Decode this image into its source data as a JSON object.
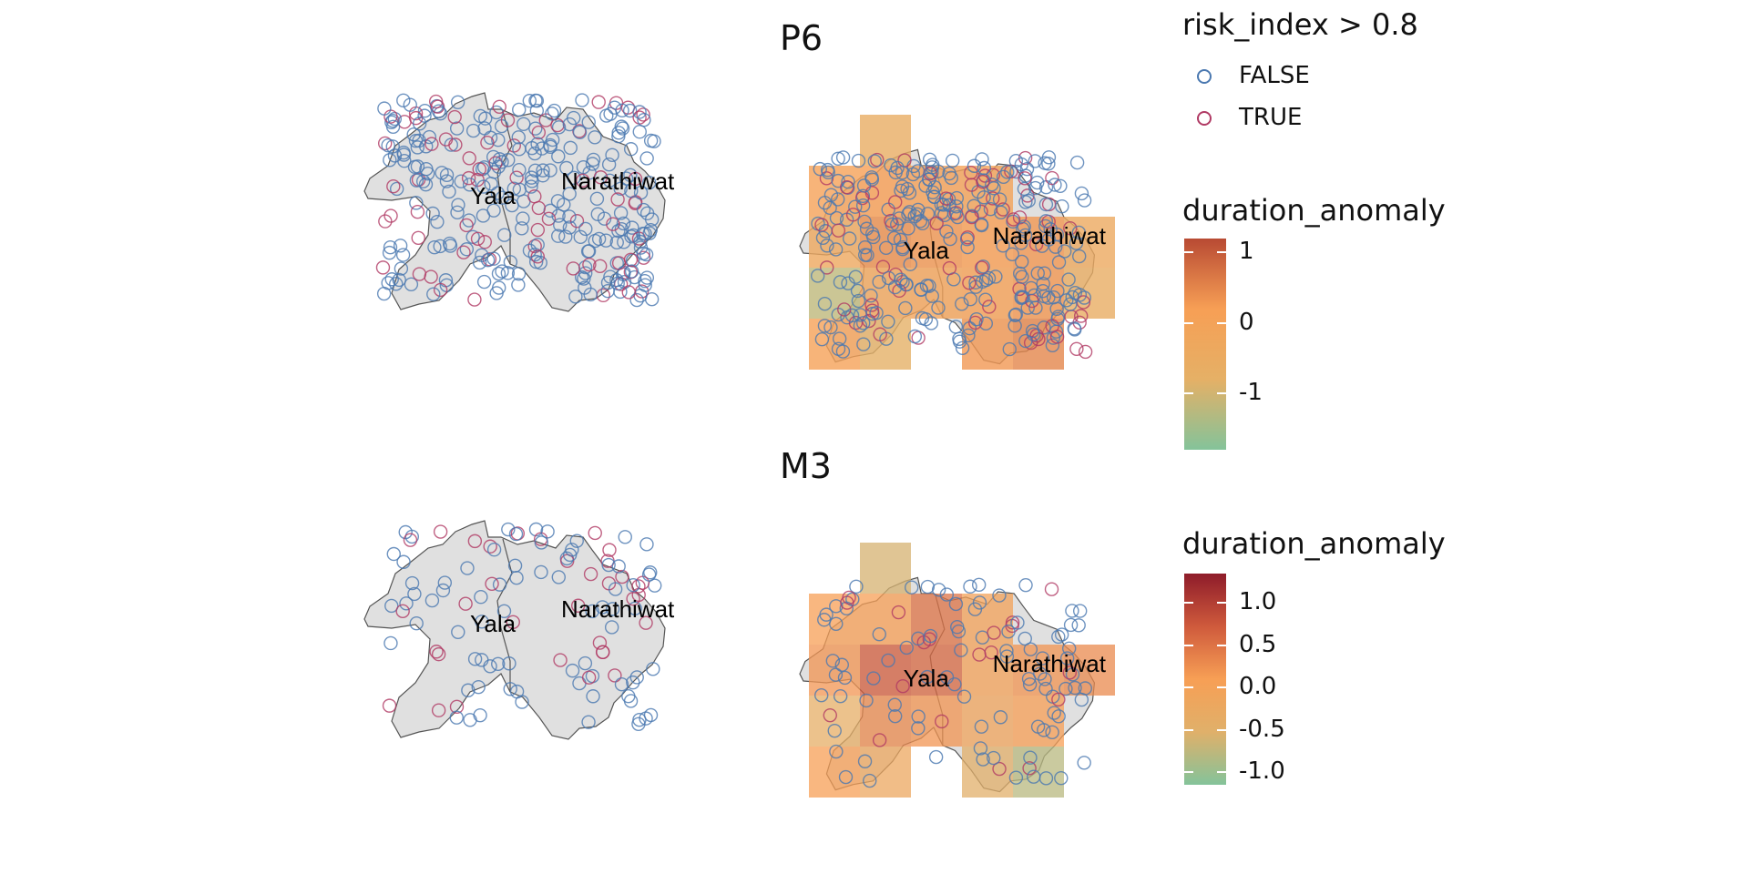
{
  "panels": [
    {
      "title": "P6",
      "region_labels": [
        "Yala",
        "Narathiwat"
      ]
    },
    {
      "title": "M3",
      "region_labels": [
        "Yala",
        "Narathiwat"
      ]
    }
  ],
  "point_legend": {
    "title": "risk_index > 0.8",
    "items": [
      {
        "label": "FALSE",
        "color": "#4a78b0"
      },
      {
        "label": "TRUE",
        "color": "#b03a64"
      }
    ]
  },
  "color_legends": [
    {
      "title": "duration_anomaly",
      "ticks": [
        "1",
        "0",
        "-1"
      ],
      "tick_values": [
        1,
        0,
        -1
      ],
      "range": [
        -1.8,
        1.2
      ],
      "colors": [
        "#84c39a",
        "#e5b066",
        "#f79f55",
        "#b84a33"
      ]
    },
    {
      "title": "duration_anomaly",
      "ticks": [
        "1.0",
        "0.5",
        "0.0",
        "-0.5",
        "-1.0"
      ],
      "tick_values": [
        1.0,
        0.5,
        0.0,
        -0.5,
        -1.0
      ],
      "range": [
        -1.15,
        1.35
      ],
      "colors": [
        "#84c39a",
        "#e0b06a",
        "#f79f55",
        "#cf5a3c",
        "#8e1c2a"
      ]
    }
  ],
  "map_style": {
    "region_fill": "#e0e0e0",
    "region_stroke": "#555555"
  }
}
